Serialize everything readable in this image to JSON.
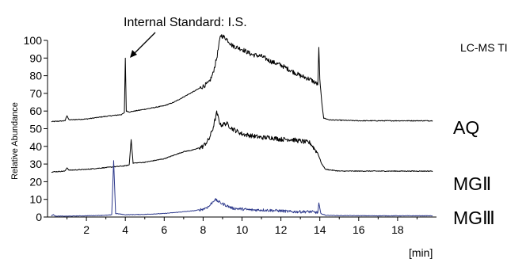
{
  "chart_data": {
    "type": "line",
    "title": "LC-MS TIC",
    "xlabel": "[min]",
    "ylabel": "Relative Abundance",
    "xlim": [
      0,
      20
    ],
    "ylim": [
      0,
      100
    ],
    "xticks": [
      2,
      4,
      6,
      8,
      10,
      12,
      14,
      16,
      18
    ],
    "yticks": [
      0,
      10,
      20,
      30,
      40,
      50,
      60,
      70,
      80,
      90,
      100
    ],
    "grid": false,
    "annotation": "Internal Standard: I.S.",
    "series": [
      {
        "name": "AQ",
        "color": "#000000",
        "points": [
          [
            0.2,
            54
          ],
          [
            0.9,
            54.5
          ],
          [
            1.0,
            57.5
          ],
          [
            1.1,
            55
          ],
          [
            2.0,
            55.5
          ],
          [
            3.0,
            57
          ],
          [
            3.8,
            58
          ],
          [
            3.95,
            59
          ],
          [
            4.0,
            90
          ],
          [
            4.05,
            60
          ],
          [
            4.2,
            59.5
          ],
          [
            5.0,
            61
          ],
          [
            6.0,
            63
          ],
          [
            6.5,
            65
          ],
          [
            7.0,
            68
          ],
          [
            7.5,
            71
          ],
          [
            8.0,
            74
          ],
          [
            8.3,
            76
          ],
          [
            8.5,
            81
          ],
          [
            8.7,
            90
          ],
          [
            8.9,
            103
          ],
          [
            9.2,
            101
          ],
          [
            9.5,
            97
          ],
          [
            10.0,
            95
          ],
          [
            10.5,
            92
          ],
          [
            11.0,
            91
          ],
          [
            11.5,
            88
          ],
          [
            12.0,
            86
          ],
          [
            12.5,
            83
          ],
          [
            13.0,
            80
          ],
          [
            13.5,
            78
          ],
          [
            13.9,
            75
          ],
          [
            13.95,
            96
          ],
          [
            14.0,
            78
          ],
          [
            14.1,
            65
          ],
          [
            14.2,
            56
          ],
          [
            14.5,
            55
          ],
          [
            16.0,
            54.5
          ],
          [
            18.0,
            54.5
          ],
          [
            19.8,
            54.5
          ]
        ]
      },
      {
        "name": "MGⅡ",
        "color": "#000000",
        "points": [
          [
            0.2,
            25.5
          ],
          [
            0.9,
            26
          ],
          [
            1.0,
            28
          ],
          [
            1.1,
            26.5
          ],
          [
            2.0,
            27
          ],
          [
            3.0,
            28
          ],
          [
            4.0,
            29
          ],
          [
            4.2,
            29.5
          ],
          [
            4.3,
            44
          ],
          [
            4.4,
            30.5
          ],
          [
            5.0,
            31
          ],
          [
            6.0,
            33
          ],
          [
            6.5,
            35
          ],
          [
            7.0,
            37
          ],
          [
            7.5,
            38
          ],
          [
            8.0,
            40
          ],
          [
            8.3,
            44
          ],
          [
            8.5,
            50
          ],
          [
            8.7,
            59
          ],
          [
            8.9,
            52
          ],
          [
            9.2,
            53
          ],
          [
            9.5,
            50
          ],
          [
            10.0,
            47
          ],
          [
            10.5,
            46
          ],
          [
            11.0,
            45
          ],
          [
            11.5,
            45
          ],
          [
            12.0,
            44
          ],
          [
            12.5,
            44
          ],
          [
            13.0,
            43
          ],
          [
            13.5,
            42
          ],
          [
            13.9,
            36
          ],
          [
            14.1,
            30
          ],
          [
            14.3,
            27
          ],
          [
            15.0,
            26
          ],
          [
            17.0,
            26
          ],
          [
            19.8,
            26
          ]
        ]
      },
      {
        "name": "MGⅢ",
        "color": "#2e3a8c",
        "points": [
          [
            0.2,
            0.5
          ],
          [
            0.3,
            1.5
          ],
          [
            0.4,
            0.5
          ],
          [
            1.0,
            0.5
          ],
          [
            2.0,
            0.7
          ],
          [
            3.0,
            1
          ],
          [
            3.3,
            1.2
          ],
          [
            3.4,
            32
          ],
          [
            3.5,
            2
          ],
          [
            4.0,
            1.3
          ],
          [
            5.0,
            1.5
          ],
          [
            6.0,
            2
          ],
          [
            6.5,
            2.5
          ],
          [
            7.0,
            3
          ],
          [
            7.5,
            3.5
          ],
          [
            8.0,
            4.5
          ],
          [
            8.3,
            6
          ],
          [
            8.6,
            10
          ],
          [
            8.9,
            8
          ],
          [
            9.2,
            6.5
          ],
          [
            9.5,
            5
          ],
          [
            10.0,
            4.5
          ],
          [
            10.5,
            4
          ],
          [
            11.0,
            4
          ],
          [
            12.0,
            3.5
          ],
          [
            12.5,
            3
          ],
          [
            13.0,
            3
          ],
          [
            13.5,
            3
          ],
          [
            13.9,
            2.5
          ],
          [
            13.95,
            8
          ],
          [
            14.05,
            2
          ],
          [
            14.3,
            1
          ],
          [
            15.0,
            0.8
          ],
          [
            17.0,
            0.7
          ],
          [
            19.8,
            0.7
          ]
        ]
      }
    ]
  }
}
